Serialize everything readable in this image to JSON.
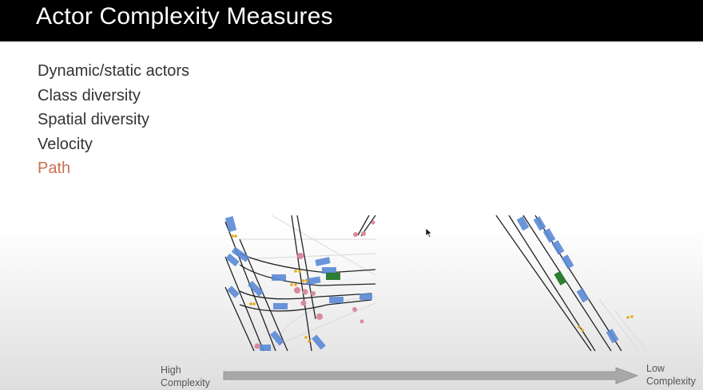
{
  "slide": {
    "title": "Actor Complexity Measures",
    "bullets": [
      {
        "text": "Dynamic/static actors",
        "highlighted": false
      },
      {
        "text": "Class diversity",
        "highlighted": false
      },
      {
        "text": "Spatial diversity",
        "highlighted": false
      },
      {
        "text": "Velocity",
        "highlighted": false
      },
      {
        "text": "Path",
        "highlighted": true
      }
    ],
    "axis": {
      "left_label_line1": "High",
      "left_label_line2": "Complexity",
      "right_label_line1": "Low",
      "right_label_line2": "Complexity"
    }
  },
  "colors": {
    "title_bar": "#000000",
    "title_text": "#ffffff",
    "bullet_text": "#333333",
    "highlight": "#c9704f",
    "vehicle_blue": "#5b8ad6",
    "ego_green": "#2e7d32",
    "pedestrian": "#d98a9b",
    "arrow_fill": "#a8a8a8"
  },
  "icons": {
    "cursor": "mouse-pointer-icon",
    "arrow": "right-arrow"
  }
}
